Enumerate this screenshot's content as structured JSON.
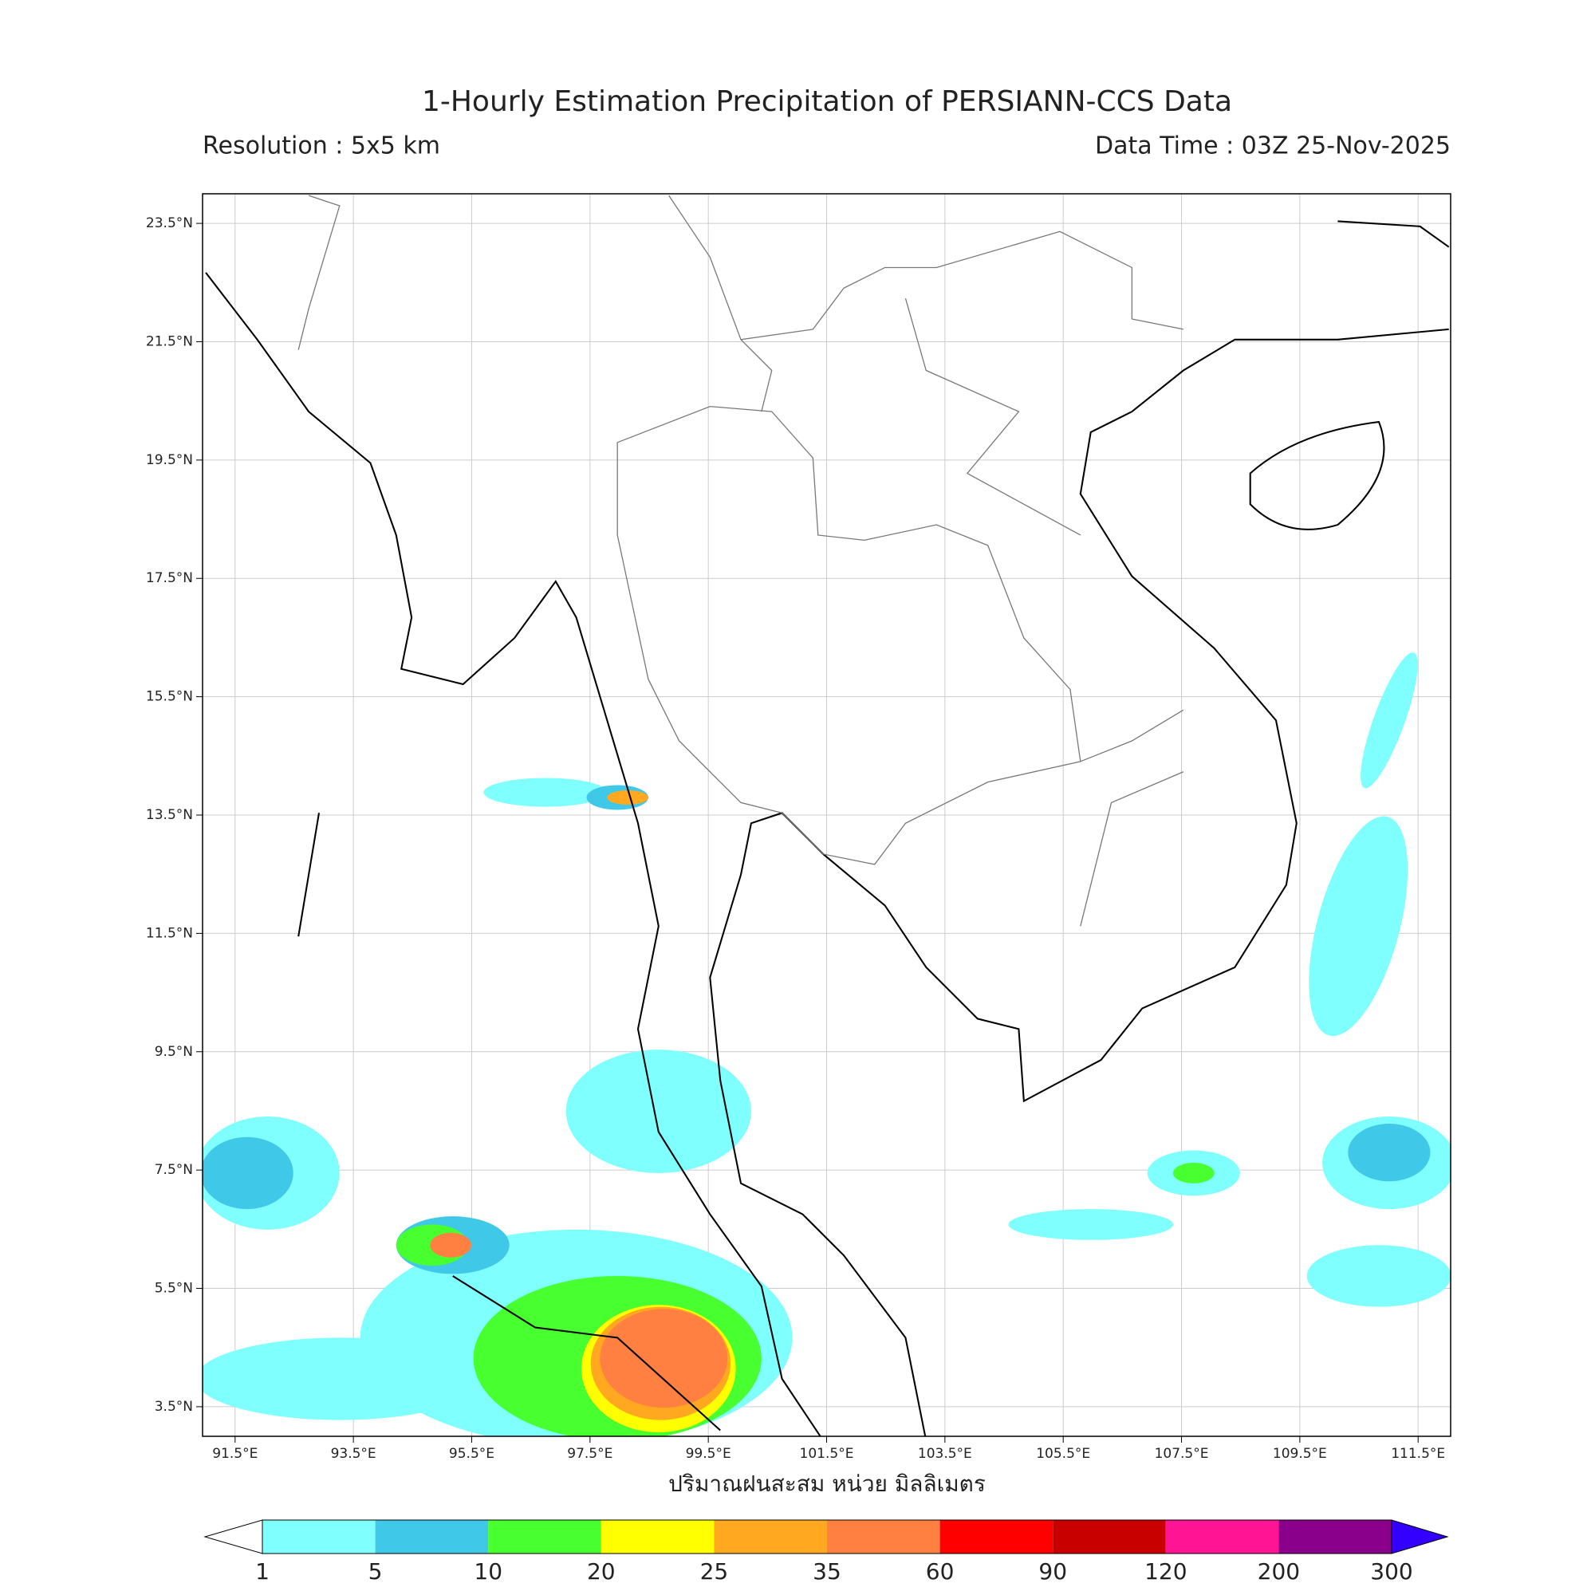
{
  "header": {
    "title": "1-Hourly Estimation Precipitation of PERSIANN-CCS Data",
    "resolution": "Resolution : 5x5 km",
    "data_time": "Data Time : 03Z 25-Nov-2025"
  },
  "map": {
    "lon_range": [
      90.95,
      112.05
    ],
    "lat_range": [
      3.0,
      24.0
    ],
    "lon_ticks": [
      {
        "value": 91.5,
        "label": "91.5°E"
      },
      {
        "value": 93.5,
        "label": "93.5°E"
      },
      {
        "value": 95.5,
        "label": "95.5°E"
      },
      {
        "value": 97.5,
        "label": "97.5°E"
      },
      {
        "value": 99.5,
        "label": "99.5°E"
      },
      {
        "value": 101.5,
        "label": "101.5°E"
      },
      {
        "value": 103.5,
        "label": "103.5°E"
      },
      {
        "value": 105.5,
        "label": "105.5°E"
      },
      {
        "value": 107.5,
        "label": "107.5°E"
      },
      {
        "value": 109.5,
        "label": "109.5°E"
      },
      {
        "value": 111.5,
        "label": "111.5°E"
      }
    ],
    "lat_ticks": [
      {
        "value": 3.5,
        "label": "3.5°N"
      },
      {
        "value": 5.5,
        "label": "5.5°N"
      },
      {
        "value": 7.5,
        "label": "7.5°N"
      },
      {
        "value": 9.5,
        "label": "9.5°N"
      },
      {
        "value": 11.5,
        "label": "11.5°N"
      },
      {
        "value": 13.5,
        "label": "13.5°N"
      },
      {
        "value": 15.5,
        "label": "15.5°N"
      },
      {
        "value": 17.5,
        "label": "17.5°N"
      },
      {
        "value": 19.5,
        "label": "19.5°N"
      },
      {
        "value": 21.5,
        "label": "21.5°N"
      },
      {
        "value": 23.5,
        "label": "23.5°N"
      }
    ],
    "xlabel": "ปริมาณฝนสะสม หน่วย มิลลิเมตร"
  },
  "colorbar": {
    "levels": [
      1,
      5,
      10,
      20,
      25,
      35,
      60,
      90,
      120,
      200,
      300
    ],
    "colors": [
      "#80ffff",
      "#40c8e8",
      "#48ff30",
      "#ffff00",
      "#ffa820",
      "#ff8040",
      "#ff0000",
      "#c80000",
      "#ff1493",
      "#8b008b"
    ],
    "under_color": "#ffffff",
    "over_color": "#3300ff"
  }
}
